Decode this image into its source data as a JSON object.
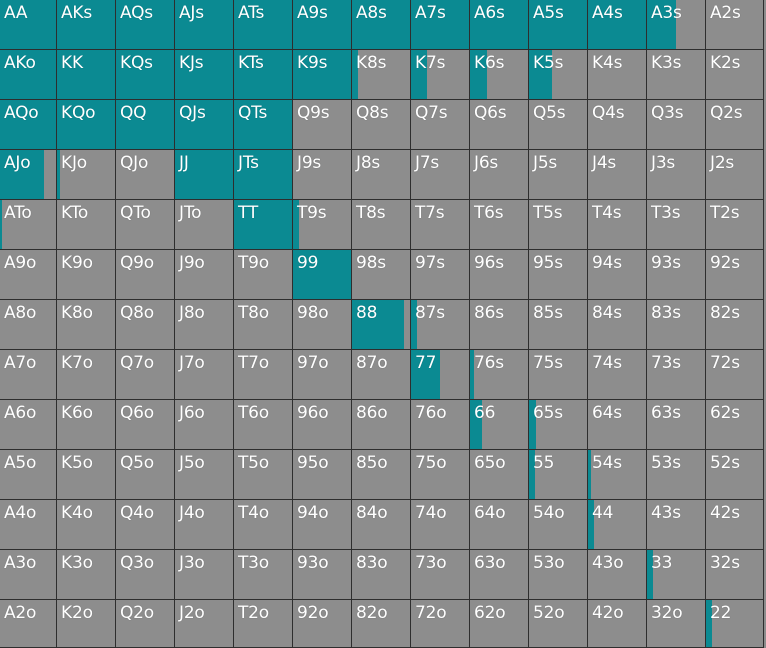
{
  "colors": {
    "cell_bg": "#8d8d8d",
    "fill": "#0b8a92",
    "grid_line": "#2e2e2e",
    "text": "#ffffff"
  },
  "rows": [
    [
      [
        "AA",
        1
      ],
      [
        "AKs",
        1
      ],
      [
        "AQs",
        1
      ],
      [
        "AJs",
        1
      ],
      [
        "ATs",
        1
      ],
      [
        "A9s",
        1
      ],
      [
        "A8s",
        1
      ],
      [
        "A7s",
        1
      ],
      [
        "A6s",
        1
      ],
      [
        "A5s",
        1
      ],
      [
        "A4s",
        1
      ],
      [
        "A3s",
        0.5
      ],
      [
        "A2s",
        0
      ]
    ],
    [
      [
        "AKo",
        1
      ],
      [
        "KK",
        1
      ],
      [
        "KQs",
        1
      ],
      [
        "KJs",
        1
      ],
      [
        "KTs",
        1
      ],
      [
        "K9s",
        1
      ],
      [
        "K8s",
        0.1
      ],
      [
        "K7s",
        0.28
      ],
      [
        "K6s",
        0.3
      ],
      [
        "K5s",
        0.4
      ],
      [
        "K4s",
        0
      ],
      [
        "K3s",
        0
      ],
      [
        "K2s",
        0
      ]
    ],
    [
      [
        "AQo",
        1
      ],
      [
        "KQo",
        1
      ],
      [
        "QQ",
        1
      ],
      [
        "QJs",
        1
      ],
      [
        "QTs",
        1
      ],
      [
        "Q9s",
        0
      ],
      [
        "Q8s",
        0
      ],
      [
        "Q7s",
        0
      ],
      [
        "Q6s",
        0
      ],
      [
        "Q5s",
        0
      ],
      [
        "Q4s",
        0
      ],
      [
        "Q3s",
        0
      ],
      [
        "Q2s",
        0
      ]
    ],
    [
      [
        "AJo",
        0.78
      ],
      [
        "KJo",
        0.06
      ],
      [
        "QJo",
        0
      ],
      [
        "JJ",
        1
      ],
      [
        "JTs",
        1
      ],
      [
        "J9s",
        0
      ],
      [
        "J8s",
        0
      ],
      [
        "J7s",
        0
      ],
      [
        "J6s",
        0
      ],
      [
        "J5s",
        0
      ],
      [
        "J4s",
        0
      ],
      [
        "J3s",
        0
      ],
      [
        "J2s",
        0
      ]
    ],
    [
      [
        "ATo",
        0.03
      ],
      [
        "KTo",
        0
      ],
      [
        "QTo",
        0
      ],
      [
        "JTo",
        0
      ],
      [
        "TT",
        1
      ],
      [
        "T9s",
        0.1
      ],
      [
        "T8s",
        0
      ],
      [
        "T7s",
        0
      ],
      [
        "T6s",
        0
      ],
      [
        "T5s",
        0
      ],
      [
        "T4s",
        0
      ],
      [
        "T3s",
        0
      ],
      [
        "T2s",
        0
      ]
    ],
    [
      [
        "A9o",
        0
      ],
      [
        "K9o",
        0
      ],
      [
        "Q9o",
        0
      ],
      [
        "J9o",
        0
      ],
      [
        "T9o",
        0
      ],
      [
        "99",
        1
      ],
      [
        "98s",
        0
      ],
      [
        "97s",
        0
      ],
      [
        "96s",
        0
      ],
      [
        "95s",
        0
      ],
      [
        "94s",
        0
      ],
      [
        "93s",
        0
      ],
      [
        "92s",
        0
      ]
    ],
    [
      [
        "A8o",
        0
      ],
      [
        "K8o",
        0
      ],
      [
        "Q8o",
        0
      ],
      [
        "J8o",
        0
      ],
      [
        "T8o",
        0
      ],
      [
        "98o",
        0
      ],
      [
        "88",
        0.9
      ],
      [
        "87s",
        0.1
      ],
      [
        "86s",
        0
      ],
      [
        "85s",
        0
      ],
      [
        "84s",
        0
      ],
      [
        "83s",
        0
      ],
      [
        "82s",
        0
      ]
    ],
    [
      [
        "A7o",
        0
      ],
      [
        "K7o",
        0
      ],
      [
        "Q7o",
        0
      ],
      [
        "J7o",
        0
      ],
      [
        "T7o",
        0
      ],
      [
        "97o",
        0
      ],
      [
        "87o",
        0
      ],
      [
        "77",
        0.5
      ],
      [
        "76s",
        0.07
      ],
      [
        "75s",
        0
      ],
      [
        "74s",
        0
      ],
      [
        "73s",
        0
      ],
      [
        "72s",
        0
      ]
    ],
    [
      [
        "A6o",
        0
      ],
      [
        "K6o",
        0
      ],
      [
        "Q6o",
        0
      ],
      [
        "J6o",
        0
      ],
      [
        "T6o",
        0
      ],
      [
        "96o",
        0
      ],
      [
        "86o",
        0
      ],
      [
        "76o",
        0
      ],
      [
        "66",
        0.2
      ],
      [
        "65s",
        0.12
      ],
      [
        "64s",
        0
      ],
      [
        "63s",
        0
      ],
      [
        "62s",
        0
      ]
    ],
    [
      [
        "A5o",
        0
      ],
      [
        "K5o",
        0
      ],
      [
        "Q5o",
        0
      ],
      [
        "J5o",
        0
      ],
      [
        "T5o",
        0
      ],
      [
        "95o",
        0
      ],
      [
        "85o",
        0
      ],
      [
        "75o",
        0
      ],
      [
        "65o",
        0
      ],
      [
        "55",
        0.1
      ],
      [
        "54s",
        0.06
      ],
      [
        "53s",
        0
      ],
      [
        "52s",
        0
      ]
    ],
    [
      [
        "A4o",
        0
      ],
      [
        "K4o",
        0
      ],
      [
        "Q4o",
        0
      ],
      [
        "J4o",
        0
      ],
      [
        "T4o",
        0
      ],
      [
        "94o",
        0
      ],
      [
        "84o",
        0
      ],
      [
        "74o",
        0
      ],
      [
        "64o",
        0
      ],
      [
        "54o",
        0
      ],
      [
        "44",
        0.1
      ],
      [
        "43s",
        0
      ],
      [
        "42s",
        0
      ]
    ],
    [
      [
        "A3o",
        0
      ],
      [
        "K3o",
        0
      ],
      [
        "Q3o",
        0
      ],
      [
        "J3o",
        0
      ],
      [
        "T3o",
        0
      ],
      [
        "93o",
        0
      ],
      [
        "83o",
        0
      ],
      [
        "73o",
        0
      ],
      [
        "63o",
        0
      ],
      [
        "53o",
        0
      ],
      [
        "43o",
        0
      ],
      [
        "33",
        0.1
      ],
      [
        "32s",
        0
      ]
    ],
    [
      [
        "A2o",
        0
      ],
      [
        "K2o",
        0
      ],
      [
        "Q2o",
        0
      ],
      [
        "J2o",
        0
      ],
      [
        "T2o",
        0
      ],
      [
        "92o",
        0
      ],
      [
        "82o",
        0
      ],
      [
        "72o",
        0
      ],
      [
        "62o",
        0
      ],
      [
        "52o",
        0
      ],
      [
        "42o",
        0
      ],
      [
        "32o",
        0
      ],
      [
        "22",
        0.1
      ]
    ]
  ]
}
